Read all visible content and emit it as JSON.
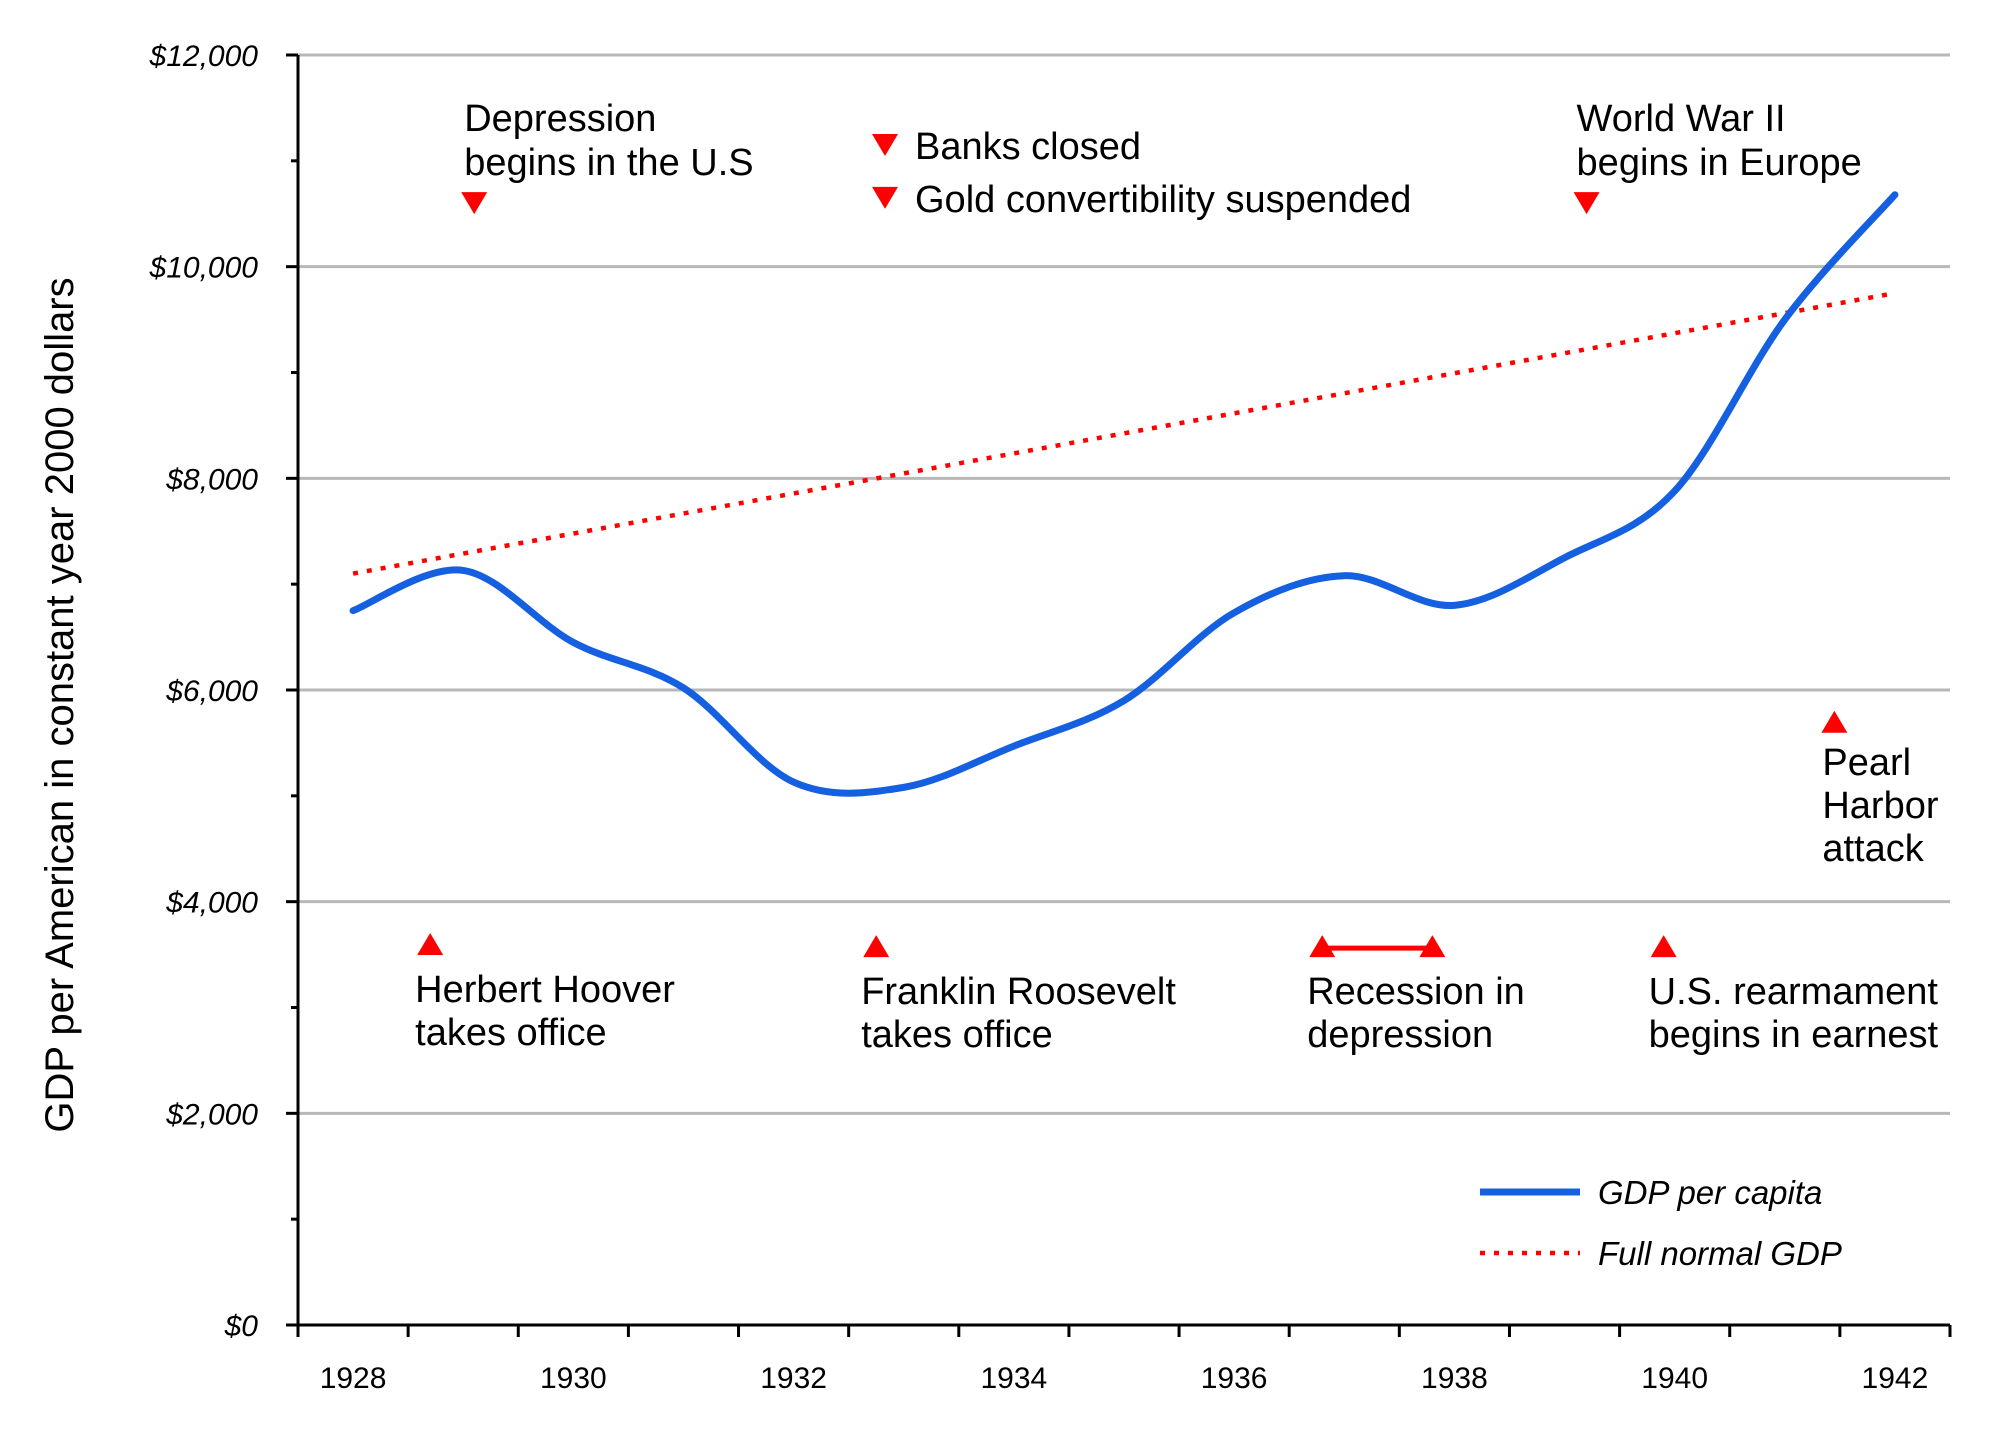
{
  "chart_data": {
    "type": "line",
    "ylabel": "GDP per American in constant year 2000 dollars",
    "xlim": [
      1927.5,
      1942.5
    ],
    "ylim": [
      0,
      12000
    ],
    "x_ticks": [
      1928,
      1930,
      1932,
      1934,
      1936,
      1938,
      1940,
      1942
    ],
    "x_tick_labels": [
      "1928",
      "1930",
      "1932",
      "1934",
      "1936",
      "1938",
      "1940",
      "1942"
    ],
    "y_ticks": [
      0,
      2000,
      4000,
      6000,
      8000,
      10000,
      12000
    ],
    "y_tick_labels": [
      "$0",
      "$2,000",
      "$4,000",
      "$6,000",
      "$8,000",
      "$10,000",
      "$12,000"
    ],
    "grid": true,
    "legend_position": "bottom-right",
    "colors": {
      "gdp": "#1560e0",
      "normal": "#ff0000",
      "markers": "#ff0000",
      "grid": "#b8b8b8"
    },
    "series": [
      {
        "name": "GDP per capita",
        "style": "solid",
        "x": [
          1928.0,
          1929.0,
          1930.0,
          1931.0,
          1932.0,
          1933.0,
          1934.0,
          1935.0,
          1936.0,
          1937.0,
          1938.0,
          1939.0,
          1940.0,
          1941.0,
          1942.0
        ],
        "y": [
          6750,
          7130,
          6450,
          6020,
          5130,
          5080,
          5470,
          5900,
          6730,
          7080,
          6800,
          7250,
          7880,
          9500,
          10680
        ]
      },
      {
        "name": "Full normal GDP",
        "style": "dotted",
        "x": [
          1928.0,
          1942.0
        ],
        "y": [
          7100,
          9750
        ]
      }
    ],
    "annotations": [
      {
        "text": "Depression\nbegins in the U.S",
        "x": 1929.1,
        "marker_y": 10600,
        "direction": "down"
      },
      {
        "text": "Banks closed",
        "x": 1932.83,
        "marker_y": 11150,
        "direction": "down"
      },
      {
        "text": "Gold convertibility suspended",
        "x": 1932.83,
        "marker_y": 10650,
        "direction": "down"
      },
      {
        "text": "World War II\nbegins in Europe",
        "x": 1939.2,
        "marker_y": 10600,
        "direction": "down"
      },
      {
        "text": "Pearl\nHarbor\nattack",
        "x": 1941.45,
        "marker_y": 5700,
        "direction": "up"
      },
      {
        "text": "Herbert Hoover\ntakes office",
        "x": 1928.7,
        "marker_y": 3600,
        "direction": "up"
      },
      {
        "text": "Franklin Roosevelt\ntakes office",
        "x": 1932.75,
        "marker_y": 3580,
        "direction": "up"
      },
      {
        "text": "Recession in\ndepression",
        "x": 1936.8,
        "x_end": 1937.8,
        "marker_y": 3580,
        "direction": "up"
      },
      {
        "text": "U.S. rearmament\nbegins in earnest",
        "x": 1939.9,
        "marker_y": 3580,
        "direction": "up"
      }
    ]
  }
}
